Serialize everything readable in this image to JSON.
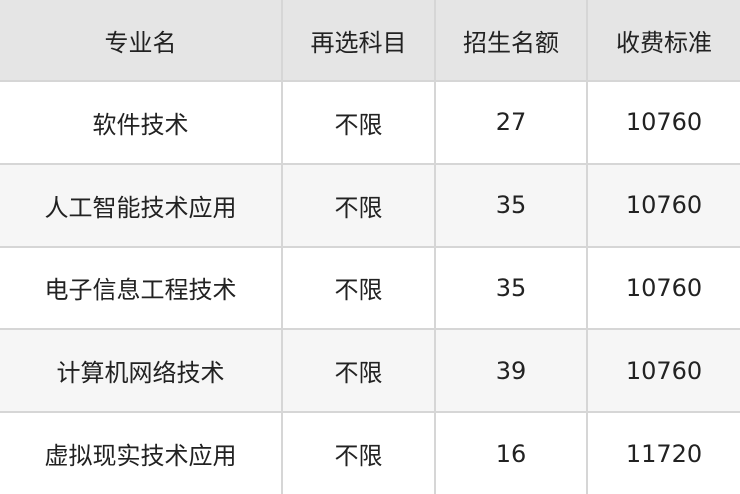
{
  "table": {
    "headers": [
      "专业名",
      "再选科目",
      "招生名额",
      "收费标准"
    ],
    "rows": [
      [
        "软件技术",
        "不限",
        "27",
        "10760"
      ],
      [
        "人工智能技术应用",
        "不限",
        "35",
        "10760"
      ],
      [
        "电子信息工程技术",
        "不限",
        "35",
        "10760"
      ],
      [
        "计算机网络技术",
        "不限",
        "39",
        "10760"
      ],
      [
        "虚拟现实技术应用",
        "不限",
        "16",
        "11720"
      ]
    ]
  },
  "colors": {
    "header_bg": "#e5e5e5",
    "alt_row_bg": "#f6f6f6",
    "border": "#d6d6d6"
  }
}
